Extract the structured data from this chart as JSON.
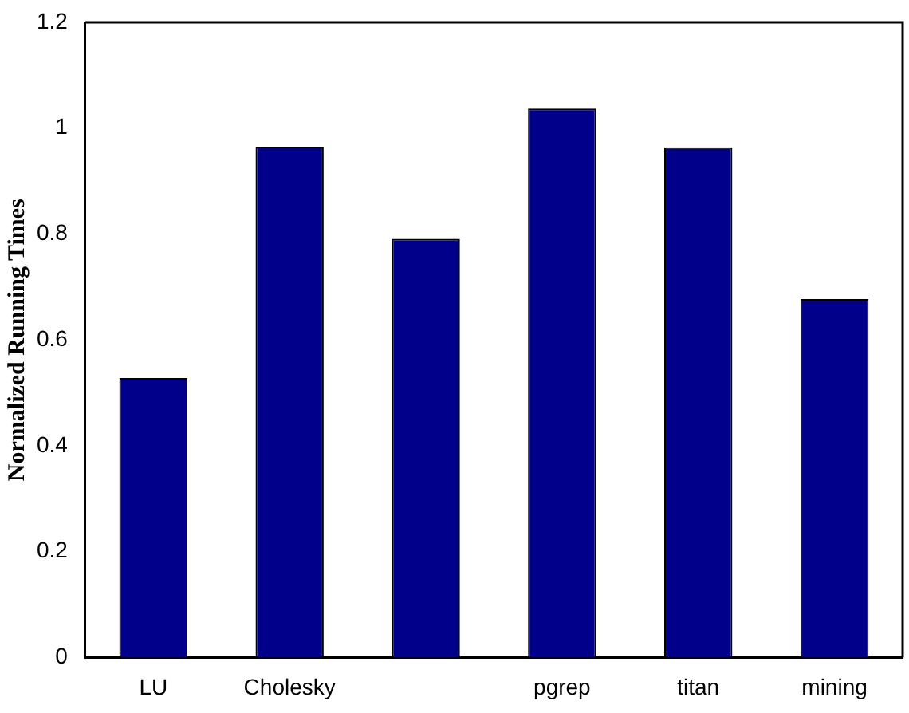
{
  "chart_data": {
    "type": "bar",
    "ylabel": "Normalized Running Times",
    "categories": [
      "LU",
      "Cholesky",
      null,
      "pgrep",
      "titan",
      "mining"
    ],
    "values": [
      0.528,
      0.965,
      0.791,
      1.037,
      0.964,
      0.677
    ],
    "color": "#00008b",
    "ylim": [
      0,
      1.2
    ],
    "yticks": [
      0,
      0.2,
      0.4,
      0.6,
      0.8,
      1,
      1.2
    ],
    "grid": false,
    "legend": false
  }
}
